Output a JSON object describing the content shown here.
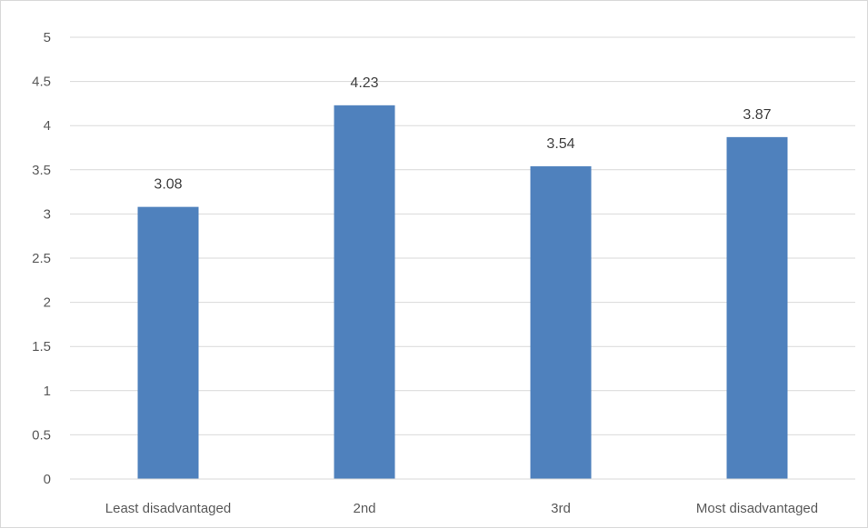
{
  "chart_data": {
    "type": "bar",
    "categories": [
      "Least disadvantaged",
      "2nd",
      "3rd",
      "Most disadvantaged"
    ],
    "values": [
      3.08,
      4.23,
      3.54,
      3.87
    ],
    "data_labels": [
      "3.08",
      "4.23",
      "3.54",
      "3.87"
    ],
    "title": "",
    "xlabel": "",
    "ylabel": "",
    "ylim": [
      0,
      5
    ],
    "yticks": [
      "0",
      "0.5",
      "1",
      "1.5",
      "2",
      "2.5",
      "3",
      "3.5",
      "4",
      "4.5",
      "5"
    ],
    "grid": true,
    "legend": "none",
    "bar_color": "#4f81bd",
    "grid_color": "#d9d9d9"
  }
}
